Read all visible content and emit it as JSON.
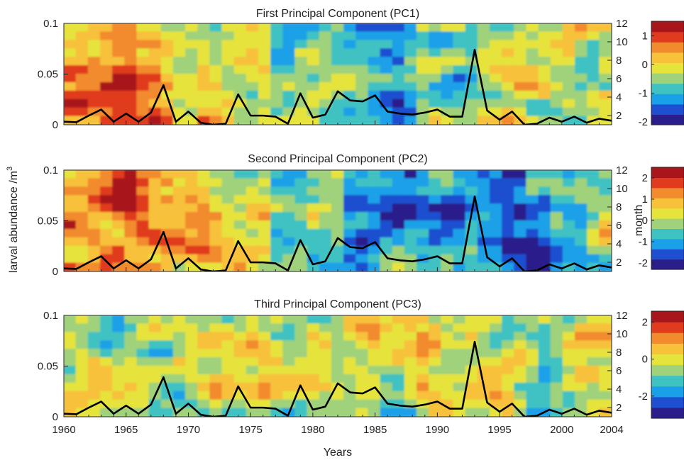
{
  "figure": {
    "xlabel": "Years",
    "left_ylabel": "larval abundance /m",
    "left_ylabel_sup": "3",
    "right_ylabel": "month"
  },
  "chart_data": [
    {
      "type": "heatmap",
      "title": "First Principal Component (PC1)",
      "xlim": [
        1960,
        2004
      ],
      "ylim_left": [
        0,
        0.1
      ],
      "ylim_right": [
        1,
        12
      ],
      "xticks": [
        "1960",
        "1965",
        "1970",
        "1975",
        "1980",
        "1985",
        "1990",
        "1995",
        "2000",
        "2004"
      ],
      "yticks_left": [
        "0",
        "0.05",
        "0.1"
      ],
      "yticks_right": [
        "2",
        "4",
        "6",
        "8",
        "10",
        "12"
      ],
      "colorbar": {
        "range": [
          -2.1,
          1.5
        ],
        "ticks": [
          "1",
          "0",
          "-1",
          "-2"
        ]
      },
      "surface_seed": 11,
      "surface_bias": [
        0.55,
        0.3,
        0.1,
        -0.25,
        -0.4,
        -0.2,
        0.05,
        -0.1
      ]
    },
    {
      "type": "heatmap",
      "title": "Second Principal Component (PC2)",
      "xlim": [
        1960,
        2004
      ],
      "ylim_left": [
        0,
        0.1
      ],
      "ylim_right": [
        1,
        12
      ],
      "xticks": [
        "1960",
        "1965",
        "1970",
        "1975",
        "1980",
        "1985",
        "1990",
        "1995",
        "2000",
        "2004"
      ],
      "yticks_left": [
        "0",
        "0.05",
        "0.1"
      ],
      "yticks_right": [
        "2",
        "4",
        "6",
        "8",
        "10",
        "12"
      ],
      "ylabel_right": "month",
      "colorbar": {
        "range": [
          -2.3,
          2.5
        ],
        "ticks": [
          "2",
          "1",
          "0",
          "-1",
          "-2"
        ]
      },
      "surface_seed": 23,
      "surface_bias": [
        0.6,
        0.55,
        0.2,
        -0.1,
        -0.55,
        -0.6,
        -0.65,
        -0.35
      ]
    },
    {
      "type": "heatmap",
      "title": "Third Principal Component (PC3)",
      "xlim": [
        1960,
        2004
      ],
      "ylim_left": [
        0,
        0.1
      ],
      "ylim_right": [
        1,
        12
      ],
      "xticks": [
        "1960",
        "1965",
        "1970",
        "1975",
        "1980",
        "1985",
        "1990",
        "1995",
        "2000",
        "2004"
      ],
      "yticks_left": [
        "0",
        "0.05",
        "0.1"
      ],
      "yticks_right": [
        "2",
        "4",
        "6",
        "8",
        "10",
        "12"
      ],
      "colorbar": {
        "range": [
          -3.2,
          2.6
        ],
        "ticks": [
          "2",
          "0",
          "-2"
        ]
      },
      "surface_seed": 37,
      "surface_bias": [
        0.05,
        0.0,
        0.1,
        0.05,
        0.0,
        0.05,
        0.0,
        0.05
      ]
    }
  ],
  "line_series": {
    "type": "line",
    "color": "#000000",
    "x": [
      1960,
      1961,
      1962,
      1963,
      1964,
      1965,
      1966,
      1967,
      1968,
      1969,
      1970,
      1971,
      1972,
      1973,
      1974,
      1975,
      1976,
      1977,
      1978,
      1979,
      1980,
      1981,
      1982,
      1983,
      1984,
      1985,
      1986,
      1987,
      1988,
      1989,
      1990,
      1991,
      1992,
      1993,
      1994,
      1995,
      1996,
      1997,
      1998,
      1999,
      2000,
      2001,
      2002,
      2003,
      2004
    ],
    "y": [
      0.003,
      0.0025,
      0.009,
      0.015,
      0.003,
      0.011,
      0.003,
      0.012,
      0.039,
      0.003,
      0.013,
      0.002,
      0.0,
      0.001,
      0.03,
      0.009,
      0.009,
      0.008,
      0.001,
      0.031,
      0.007,
      0.01,
      0.033,
      0.024,
      0.023,
      0.029,
      0.013,
      0.011,
      0.01,
      0.012,
      0.015,
      0.008,
      0.008,
      0.074,
      0.014,
      0.005,
      0.013,
      0.0,
      0.001,
      0.007,
      0.003,
      0.008,
      0.002,
      0.006,
      0.004
    ]
  },
  "colors": {
    "colormap": [
      "#2a1f8a",
      "#1e4fd0",
      "#1aa0e8",
      "#3fc2c2",
      "#9fd27a",
      "#e6e33c",
      "#f7c13a",
      "#f28a2e",
      "#e03a1f",
      "#a8151a"
    ]
  }
}
